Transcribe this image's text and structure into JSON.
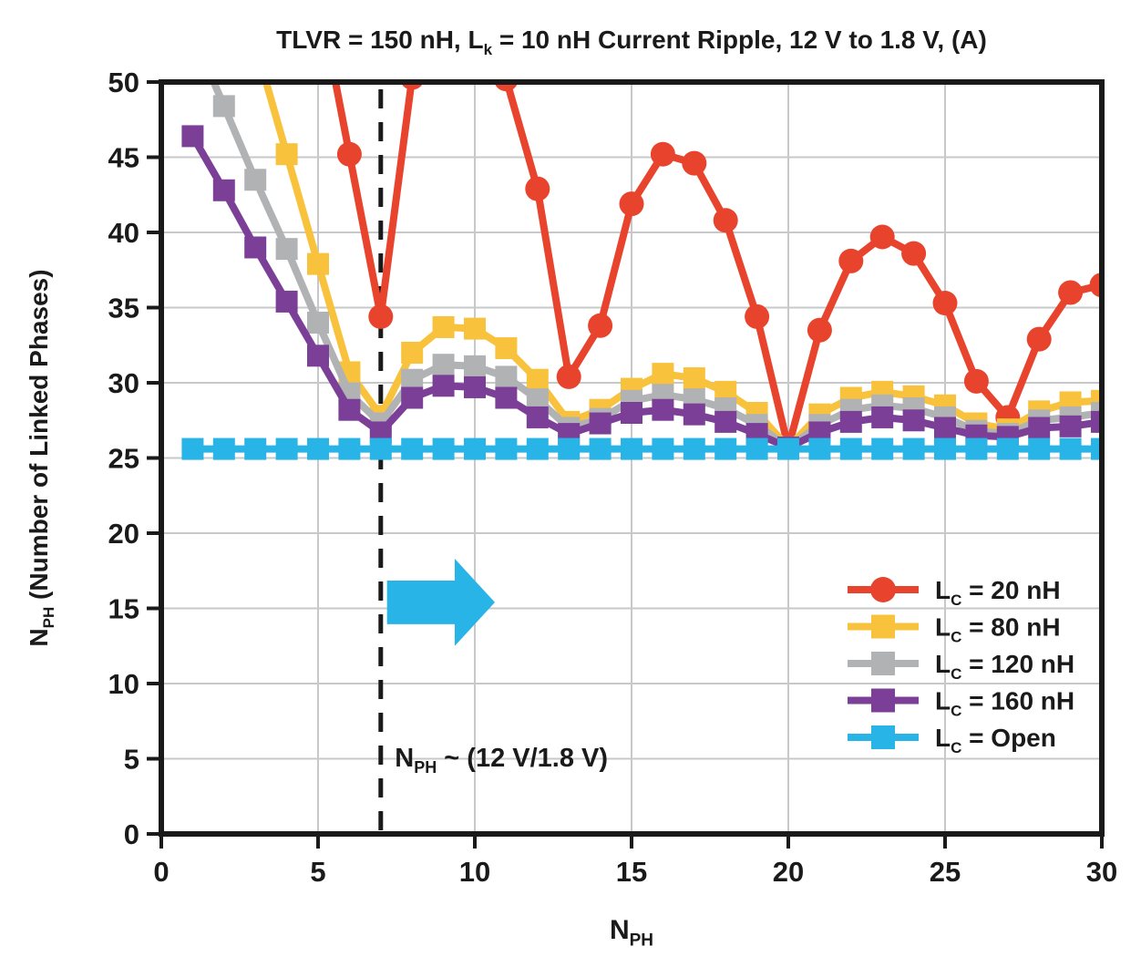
{
  "chart_data": {
    "type": "line",
    "title": "TLVR = 150 nH, Lk = 10 nH Current Ripple, 12 V to 1.8 V, (A)",
    "title_segments": [
      {
        "t": "TLVR = 150 nH, L"
      },
      {
        "t": "k",
        "sub": true
      },
      {
        "t": " = 10 nH Current Ripple, 12 V to 1.8 V, (A)"
      }
    ],
    "xlabel": "N_PH",
    "xlabel_segments": [
      {
        "t": "N"
      },
      {
        "t": "PH",
        "sub": true
      }
    ],
    "ylabel": "N_PH (Number of Linked Phases)",
    "ylabel_segments": [
      {
        "t": "N"
      },
      {
        "t": "PH",
        "sub": true
      },
      {
        "t": " (Number of Linked Phases)"
      }
    ],
    "xlim": [
      0,
      30
    ],
    "ylim": [
      0,
      50
    ],
    "xticks": [
      0,
      5,
      10,
      15,
      20,
      25,
      30
    ],
    "yticks": [
      0,
      5,
      10,
      15,
      20,
      25,
      30,
      35,
      40,
      45,
      50
    ],
    "grid": true,
    "legend_position": "inside-right",
    "clip_note": "values greater than 50 run off the top of the plot and are clipped",
    "x": [
      1,
      2,
      3,
      4,
      5,
      6,
      7,
      8,
      9,
      10,
      11,
      12,
      13,
      14,
      15,
      16,
      17,
      18,
      19,
      20,
      21,
      22,
      23,
      24,
      25,
      26,
      27,
      28,
      29,
      30
    ],
    "series": [
      {
        "name": "Lc = 20 nH",
        "label_segments": [
          {
            "t": "L"
          },
          {
            "t": "C",
            "sub": true
          },
          {
            "t": " = 20 nH"
          }
        ],
        "color": "#e8432d",
        "marker": "circle",
        "values": [
          null,
          null,
          null,
          null,
          56.0,
          45.2,
          34.4,
          50.3,
          55.5,
          55.5,
          50.2,
          42.9,
          30.4,
          33.8,
          41.9,
          45.2,
          44.6,
          40.8,
          34.4,
          25.7,
          33.5,
          38.1,
          39.7,
          38.6,
          35.3,
          30.1,
          27.7,
          32.9,
          36.0,
          36.5
        ]
      },
      {
        "name": "Lc = 80 nH",
        "label_segments": [
          {
            "t": "L"
          },
          {
            "t": "C",
            "sub": true
          },
          {
            "t": " = 80 nH"
          }
        ],
        "color": "#f8c23c",
        "marker": "square",
        "values": [
          null,
          59.5,
          52.5,
          45.2,
          37.9,
          30.7,
          27.8,
          32.0,
          33.7,
          33.6,
          32.3,
          30.2,
          27.4,
          28.2,
          29.6,
          30.6,
          30.3,
          29.4,
          28.0,
          25.7,
          27.9,
          29.0,
          29.4,
          29.1,
          28.5,
          27.3,
          26.9,
          28.1,
          28.7,
          28.8
        ]
      },
      {
        "name": "Lc = 120 nH",
        "label_segments": [
          {
            "t": "L"
          },
          {
            "t": "C",
            "sub": true
          },
          {
            "t": " = 120 nH"
          }
        ],
        "color": "#b1b2b4",
        "marker": "square",
        "values": [
          53.3,
          48.4,
          43.5,
          38.9,
          34.0,
          29.3,
          27.3,
          30.2,
          31.2,
          31.1,
          30.4,
          28.9,
          27.0,
          27.6,
          28.8,
          29.2,
          28.9,
          28.3,
          27.2,
          25.7,
          27.2,
          28.2,
          28.5,
          28.3,
          27.7,
          26.8,
          26.6,
          27.5,
          27.7,
          28.0
        ]
      },
      {
        "name": "Lc = 160 nH",
        "label_segments": [
          {
            "t": "L"
          },
          {
            "t": "C",
            "sub": true
          },
          {
            "t": " = 160 nH"
          }
        ],
        "color": "#7c3f98",
        "marker": "square",
        "values": [
          46.4,
          42.8,
          39.0,
          35.4,
          31.8,
          28.2,
          26.7,
          29.0,
          29.8,
          29.7,
          29.0,
          27.7,
          26.6,
          27.3,
          28.0,
          28.2,
          27.9,
          27.4,
          26.6,
          25.7,
          26.7,
          27.4,
          27.7,
          27.5,
          27.0,
          26.5,
          26.4,
          27.0,
          27.1,
          27.4
        ]
      },
      {
        "name": "Lc = Open",
        "label_segments": [
          {
            "t": "L"
          },
          {
            "t": "C",
            "sub": true
          },
          {
            "t": " = Open"
          }
        ],
        "color": "#29b4e8",
        "marker": "square",
        "values": [
          25.6,
          25.6,
          25.6,
          25.6,
          25.6,
          25.6,
          25.6,
          25.6,
          25.6,
          25.6,
          25.6,
          25.6,
          25.6,
          25.6,
          25.6,
          25.6,
          25.6,
          25.6,
          25.6,
          25.6,
          25.6,
          25.6,
          25.6,
          25.6,
          25.6,
          25.6,
          25.6,
          25.6,
          25.6,
          25.6
        ]
      }
    ],
    "annotations": {
      "dashed_vertical_line_x": 7,
      "label": {
        "text": "N_PH ~ (12 V/1.8 V)",
        "segments": [
          {
            "t": "N"
          },
          {
            "t": "PH",
            "sub": true
          },
          {
            "t": " ~ (12 V/1.8 V)"
          }
        ],
        "x": 7.45,
        "y": 4.5
      },
      "arrow": {
        "direction": "right",
        "color": "#29b4e8",
        "x_start": 7.2,
        "x_neck": 9.36,
        "x_tip": 10.64,
        "y_center": 15.4,
        "body_half_height": 1.45,
        "head_half_height": 2.9
      }
    }
  }
}
